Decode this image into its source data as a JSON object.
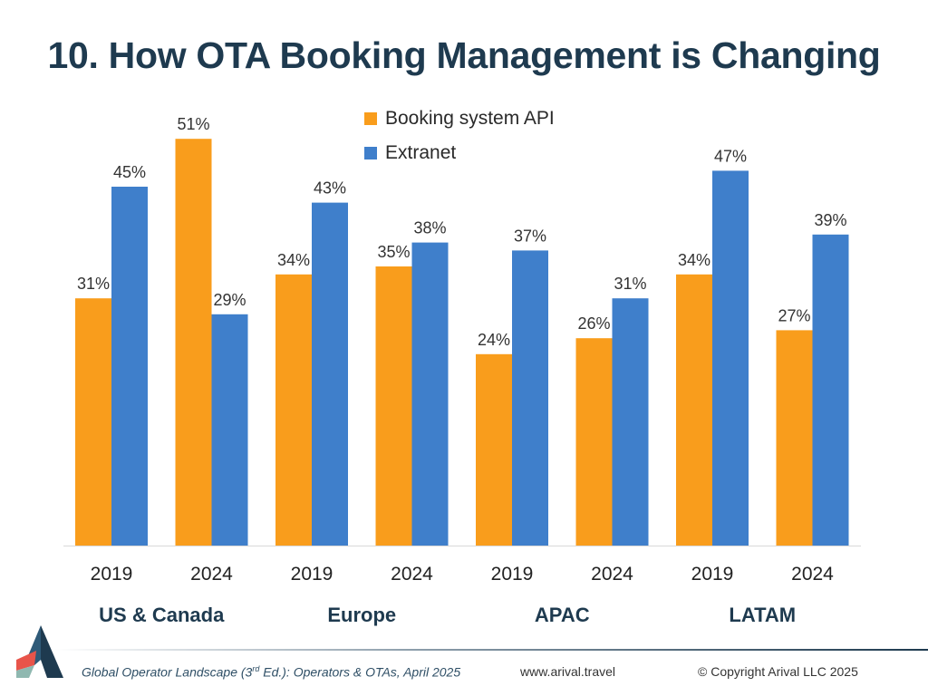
{
  "title": "10. How OTA Booking Management is Changing",
  "colors": {
    "booking_api": "#f99d1c",
    "extranet": "#3f7fcb",
    "title": "#1e3a4f"
  },
  "footer": {
    "source_prefix": "Global Operator Landscape (3",
    "source_sup": "rd",
    "source_suffix": " Ed.):  Operators & OTAs, April 2025",
    "website": "www.arival.travel",
    "copyright": "© Copyright Arival LLC 2025"
  },
  "chart_data": {
    "type": "bar",
    "title": "10. How OTA Booking Management is Changing",
    "legend_position": "top-center",
    "grid": false,
    "ylim": [
      0,
      55
    ],
    "groups": [
      "US & Canada",
      "Europe",
      "APAC",
      "LATAM"
    ],
    "categories": [
      "2019",
      "2024",
      "2019",
      "2024",
      "2019",
      "2024",
      "2019",
      "2024"
    ],
    "series": [
      {
        "name": "Booking system API",
        "values": [
          31,
          51,
          34,
          35,
          24,
          26,
          34,
          27
        ],
        "labels": [
          "31%",
          "51%",
          "34%",
          "35%",
          "24%",
          "26%",
          "34%",
          "27%"
        ]
      },
      {
        "name": "Extranet",
        "values": [
          45,
          29,
          43,
          38,
          37,
          31,
          47,
          39
        ],
        "labels": [
          "45%",
          "29%",
          "43%",
          "38%",
          "37%",
          "31%",
          "47%",
          "39%"
        ]
      }
    ]
  }
}
